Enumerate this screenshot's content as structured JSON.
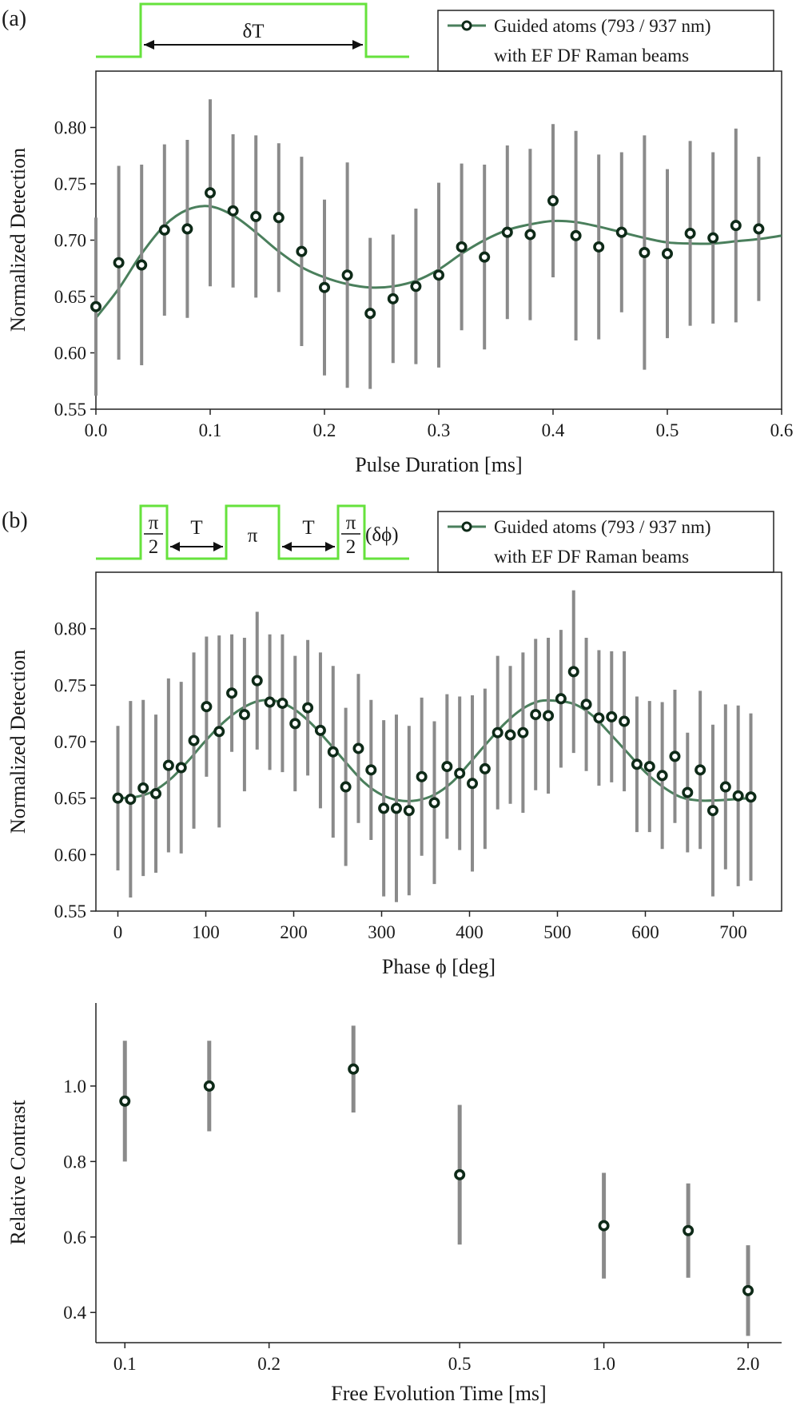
{
  "chart_data": [
    {
      "type": "scatter",
      "panel_label": "(a)",
      "xlabel": "Pulse Duration [ms]",
      "ylabel": "Normalized Detection",
      "xlim": [
        0,
        0.6
      ],
      "ylim": [
        0.55,
        0.85
      ],
      "xticks": [
        "0.0",
        "0.1",
        "0.2",
        "0.3",
        "0.4",
        "0.5",
        "0.6"
      ],
      "yticks": [
        "0.55",
        "0.60",
        "0.65",
        "0.70",
        "0.75",
        "0.80"
      ],
      "legend": {
        "line1": "Guided atoms (793 / 937 nm)",
        "line2": "with EF DF Raman beams",
        "position": "top-right"
      },
      "pulse_sequence": {
        "label": "δT"
      },
      "colors": {
        "fit": "#4a7f5c",
        "marker": "#0e2a18",
        "errorbar": "#8a8a8a",
        "pulse": "#66e23c"
      },
      "series": [
        {
          "name": "data",
          "x": [
            0.0,
            0.02,
            0.04,
            0.06,
            0.08,
            0.1,
            0.12,
            0.14,
            0.16,
            0.18,
            0.2,
            0.22,
            0.24,
            0.26,
            0.28,
            0.3,
            0.32,
            0.34,
            0.36,
            0.38,
            0.4,
            0.42,
            0.44,
            0.46,
            0.48,
            0.5,
            0.52,
            0.54,
            0.56,
            0.58
          ],
          "y": [
            0.641,
            0.68,
            0.678,
            0.709,
            0.71,
            0.742,
            0.726,
            0.721,
            0.72,
            0.69,
            0.658,
            0.669,
            0.635,
            0.648,
            0.659,
            0.669,
            0.694,
            0.685,
            0.707,
            0.705,
            0.735,
            0.704,
            0.694,
            0.707,
            0.689,
            0.688,
            0.706,
            0.702,
            0.713,
            0.71
          ],
          "yerr": [
            0.079,
            0.086,
            0.089,
            0.076,
            0.079,
            0.083,
            0.068,
            0.072,
            0.066,
            0.084,
            0.078,
            0.1,
            0.067,
            0.057,
            0.069,
            0.082,
            0.074,
            0.082,
            0.077,
            0.076,
            0.068,
            0.093,
            0.082,
            0.071,
            0.104,
            0.075,
            0.082,
            0.076,
            0.086,
            0.064
          ]
        },
        {
          "name": "fit",
          "x": [
            0,
            0.02,
            0.04,
            0.06,
            0.08,
            0.1,
            0.12,
            0.14,
            0.16,
            0.18,
            0.2,
            0.22,
            0.24,
            0.26,
            0.28,
            0.3,
            0.32,
            0.34,
            0.36,
            0.38,
            0.4,
            0.42,
            0.44,
            0.46,
            0.48,
            0.5,
            0.52,
            0.54,
            0.56,
            0.58,
            0.6
          ],
          "y": [
            0.631,
            0.657,
            0.688,
            0.713,
            0.727,
            0.73,
            0.722,
            0.707,
            0.69,
            0.676,
            0.667,
            0.661,
            0.658,
            0.659,
            0.664,
            0.674,
            0.688,
            0.7,
            0.709,
            0.714,
            0.717,
            0.716,
            0.712,
            0.707,
            0.702,
            0.698,
            0.697,
            0.697,
            0.699,
            0.701,
            0.704
          ]
        }
      ]
    },
    {
      "type": "scatter",
      "panel_label": "(b)",
      "xlabel": "Phase ϕ [deg]",
      "ylabel": "Normalized Detection",
      "xlim": [
        -25,
        755
      ],
      "ylim": [
        0.55,
        0.85
      ],
      "xticks": [
        "0",
        "100",
        "200",
        "300",
        "400",
        "500",
        "600",
        "700"
      ],
      "yticks": [
        "0.55",
        "0.60",
        "0.65",
        "0.70",
        "0.75",
        "0.80"
      ],
      "legend": {
        "line1": "Guided atoms (793 / 937 nm)",
        "line2": "with EF DF Raman beams",
        "position": "top-right"
      },
      "pulse_sequence": {
        "pi": "π",
        "two": "2",
        "T": "T",
        "phase": "(δϕ)"
      },
      "colors": {
        "fit": "#4a7f5c",
        "marker": "#0e2a18",
        "errorbar": "#8a8a8a",
        "pulse": "#66e23c"
      },
      "series": [
        {
          "name": "data",
          "x": [
            0,
            14.4,
            28.8,
            43.2,
            57.6,
            72,
            86.4,
            100.8,
            115.2,
            129.6,
            144,
            158.4,
            172.8,
            187.2,
            201.6,
            216,
            230.4,
            244.8,
            259.2,
            273.6,
            288,
            302.4,
            316.8,
            331.2,
            345.6,
            360,
            374.4,
            388.8,
            403.2,
            417.6,
            432,
            446.4,
            460.8,
            475.2,
            489.6,
            504,
            518.4,
            532.8,
            547.2,
            561.6,
            576,
            590.4,
            604.8,
            619.2,
            633.6,
            648,
            662.4,
            676.8,
            691.2,
            705.6,
            720
          ],
          "y": [
            0.65,
            0.649,
            0.659,
            0.654,
            0.679,
            0.677,
            0.701,
            0.731,
            0.709,
            0.743,
            0.724,
            0.754,
            0.735,
            0.734,
            0.716,
            0.73,
            0.71,
            0.691,
            0.66,
            0.694,
            0.675,
            0.641,
            0.641,
            0.639,
            0.669,
            0.646,
            0.678,
            0.672,
            0.663,
            0.676,
            0.708,
            0.706,
            0.708,
            0.724,
            0.723,
            0.738,
            0.762,
            0.733,
            0.721,
            0.722,
            0.718,
            0.68,
            0.678,
            0.67,
            0.687,
            0.655,
            0.675,
            0.639,
            0.66,
            0.652,
            0.651
          ],
          "yerr": [
            0.064,
            0.087,
            0.078,
            0.07,
            0.077,
            0.076,
            0.078,
            0.062,
            0.085,
            0.052,
            0.068,
            0.061,
            0.06,
            0.061,
            0.06,
            0.06,
            0.069,
            0.076,
            0.07,
            0.066,
            0.062,
            0.078,
            0.083,
            0.075,
            0.07,
            0.072,
            0.064,
            0.068,
            0.078,
            0.071,
            0.068,
            0.061,
            0.071,
            0.067,
            0.069,
            0.061,
            0.072,
            0.059,
            0.06,
            0.058,
            0.062,
            0.06,
            0.058,
            0.065,
            0.059,
            0.053,
            0.07,
            0.076,
            0.073,
            0.08,
            0.074
          ]
        },
        {
          "name": "fit",
          "x": [
            0,
            20,
            40,
            60,
            80,
            100,
            120,
            140,
            160,
            180,
            200,
            220,
            240,
            260,
            280,
            300,
            320,
            340,
            360,
            380,
            400,
            420,
            440,
            460,
            480,
            500,
            520,
            540,
            560,
            580,
            600,
            620,
            640,
            660,
            680,
            700,
            720
          ],
          "y": [
            0.65,
            0.651,
            0.656,
            0.667,
            0.683,
            0.701,
            0.717,
            0.729,
            0.736,
            0.736,
            0.729,
            0.716,
            0.699,
            0.681,
            0.664,
            0.653,
            0.648,
            0.648,
            0.653,
            0.664,
            0.681,
            0.699,
            0.716,
            0.729,
            0.736,
            0.736,
            0.733,
            0.723,
            0.707,
            0.69,
            0.673,
            0.66,
            0.651,
            0.648,
            0.648,
            0.649,
            0.65
          ]
        }
      ]
    },
    {
      "type": "scatter",
      "panel_label": "",
      "xlabel": "Free Evolution Time [ms]",
      "ylabel": "Relative Contrast",
      "xscale": "log",
      "xlim": [
        0.087,
        2.35
      ],
      "ylim": [
        0.32,
        1.22
      ],
      "xticks": [
        "0.1",
        "0.2",
        "0.5",
        "1.0",
        "2.0"
      ],
      "yticks": [
        "0.4",
        "0.6",
        "0.8",
        "1.0"
      ],
      "colors": {
        "marker": "#0e2a18",
        "errorbar": "#8a8a8a"
      },
      "series": [
        {
          "name": "data",
          "x": [
            0.1,
            0.15,
            0.3,
            0.5,
            1.0,
            1.5,
            2.0
          ],
          "y": [
            0.96,
            1.0,
            1.045,
            0.765,
            0.63,
            0.617,
            0.458
          ],
          "yerr": [
            0.16,
            0.12,
            0.115,
            0.185,
            0.14,
            0.125,
            0.12
          ]
        }
      ]
    }
  ]
}
